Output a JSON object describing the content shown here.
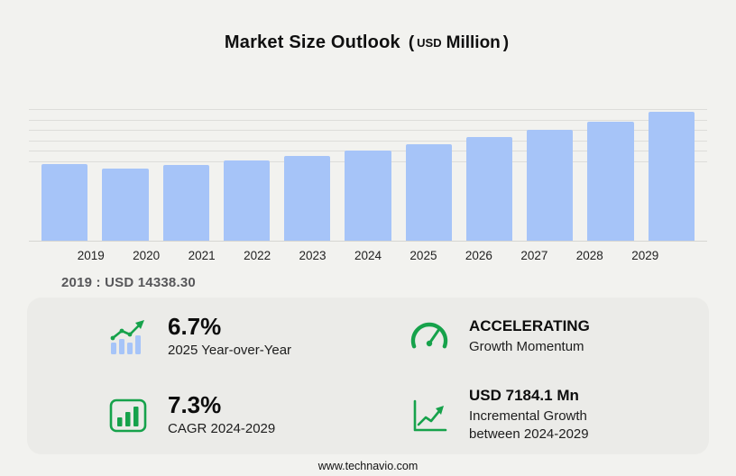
{
  "title": {
    "main": "Market Size Outlook",
    "paren_open": "(",
    "unit_currency": "USD",
    "unit_scale": "Million",
    "paren_close": ")"
  },
  "chart_data": {
    "type": "bar",
    "title": "Market Size Outlook (USD Million)",
    "categories": [
      "2019",
      "2020",
      "2021",
      "2022",
      "2023",
      "2024",
      "2025",
      "2026",
      "2027",
      "2028",
      "2029"
    ],
    "values": [
      14338.3,
      13600,
      14200,
      15100,
      15850,
      17008,
      18147,
      19420,
      20780,
      22290,
      24192
    ],
    "labeled_values": {
      "2019": 14338.3
    },
    "ylim": [
      0,
      24700
    ],
    "xlabel": "",
    "ylabel": "",
    "grid": true,
    "legend": "none",
    "bar_color": "#a6c4f8"
  },
  "annotation": "2019 : USD  14338.30",
  "stats": {
    "yoy": {
      "value": "6.7%",
      "label": "2025 Year-over-Year",
      "icon": "bar-chart-trend-icon"
    },
    "momentum": {
      "value": "ACCELERATING",
      "label": "Growth Momentum",
      "icon": "speedometer-icon"
    },
    "cagr": {
      "value": "7.3%",
      "label": "CAGR 2024-2029",
      "icon": "cagr-chart-icon"
    },
    "incremental": {
      "value": "USD 7184.1 Mn",
      "label_line1": "Incremental Growth",
      "label_line2": "between 2024-2029",
      "icon": "incremental-growth-icon"
    }
  },
  "footer": {
    "url": "www.technavio.com"
  },
  "colors": {
    "page_bg": "#f2f2ef",
    "panel_bg": "#ebebe8",
    "bar": "#a6c4f8",
    "accent_green": "#16a24b",
    "gridline": "#dddddA",
    "annotation_text": "#57575a"
  }
}
